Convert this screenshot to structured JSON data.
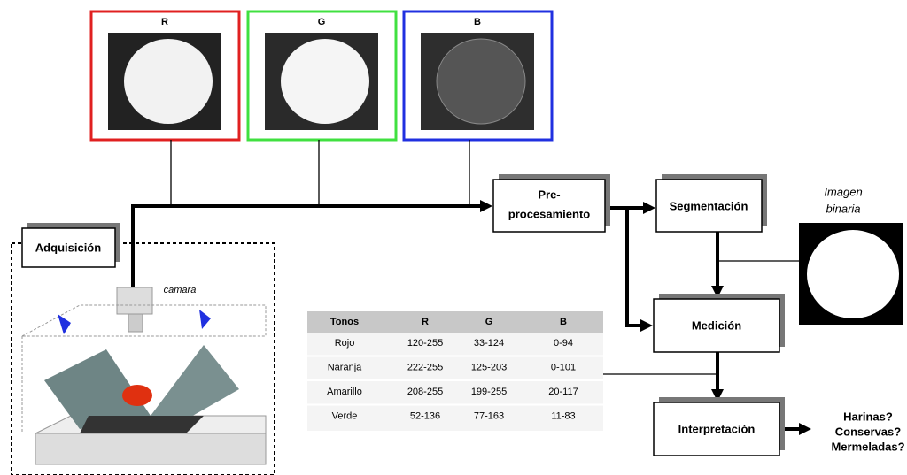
{
  "channels": [
    {
      "label": "R"
    },
    {
      "label": "G"
    },
    {
      "label": "B"
    }
  ],
  "nodes": {
    "preprocessing": {
      "lines": [
        "Pre-",
        "procesamiento"
      ]
    },
    "segmentation": {
      "label": "Segmentación"
    },
    "acquisition": {
      "label": "Adquisición"
    },
    "measurement": {
      "label": "Medición"
    },
    "interpretation": {
      "label": "Interpretación"
    }
  },
  "binary_image": {
    "lines": [
      "Imagen",
      "binaria"
    ]
  },
  "camera_label": "camara",
  "outputs": [
    "Harinas?",
    "Conservas?",
    "Mermeladas?"
  ],
  "table": {
    "header": [
      "Tonos",
      "R",
      "G",
      "B"
    ],
    "rows": [
      [
        "Rojo",
        "120-255",
        "33-124",
        "0-94"
      ],
      [
        "Naranja",
        "222-255",
        "125-203",
        "0-101"
      ],
      [
        "Amarillo",
        "208-255",
        "199-255",
        "20-117"
      ],
      [
        "Verde",
        "52-136",
        "77-163",
        "11-83"
      ]
    ]
  }
}
